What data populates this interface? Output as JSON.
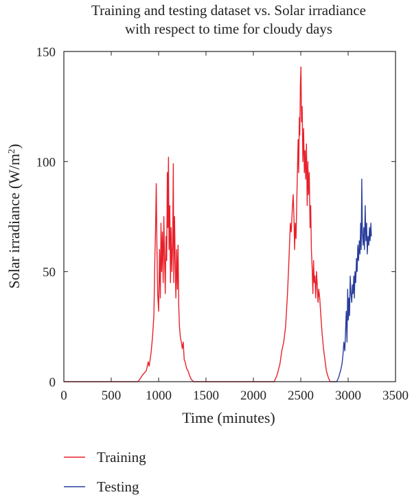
{
  "chart_data": {
    "type": "line",
    "title": "Training and testing dataset vs. Solar irradiance with respect to time for cloudy days",
    "title_lines": [
      "Training and testing dataset vs. Solar irradiance",
      "with respect to time for cloudy days"
    ],
    "xlabel": "Time (minutes)",
    "ylabel_main": "Solar irradiance (W/m",
    "ylabel_sup": "2",
    "ylabel_tail": ")",
    "xlim": [
      0,
      3500
    ],
    "ylim": [
      0,
      150
    ],
    "xticks": [
      0,
      500,
      1000,
      1500,
      2000,
      2500,
      3000,
      3500
    ],
    "yticks": [
      0,
      50,
      100,
      150
    ],
    "grid": false,
    "legend_position": "bottom-left",
    "series": [
      {
        "name": "Training",
        "color": "#e8202a",
        "points": [
          [
            0,
            0
          ],
          [
            780,
            0
          ],
          [
            800,
            1
          ],
          [
            830,
            3
          ],
          [
            850,
            4
          ],
          [
            870,
            5
          ],
          [
            890,
            9
          ],
          [
            900,
            7
          ],
          [
            920,
            13
          ],
          [
            935,
            20
          ],
          [
            950,
            30
          ],
          [
            960,
            55
          ],
          [
            968,
            70
          ],
          [
            975,
            90
          ],
          [
            982,
            62
          ],
          [
            990,
            40
          ],
          [
            1000,
            32
          ],
          [
            1010,
            60
          ],
          [
            1018,
            38
          ],
          [
            1025,
            72
          ],
          [
            1032,
            50
          ],
          [
            1040,
            68
          ],
          [
            1048,
            45
          ],
          [
            1055,
            75
          ],
          [
            1062,
            58
          ],
          [
            1070,
            40
          ],
          [
            1078,
            66
          ],
          [
            1085,
            55
          ],
          [
            1092,
            95
          ],
          [
            1098,
            70
          ],
          [
            1104,
            102
          ],
          [
            1110,
            60
          ],
          [
            1118,
            80
          ],
          [
            1125,
            45
          ],
          [
            1132,
            70
          ],
          [
            1140,
            50
          ],
          [
            1148,
            62
          ],
          [
            1155,
            99
          ],
          [
            1160,
            45
          ],
          [
            1168,
            75
          ],
          [
            1175,
            55
          ],
          [
            1182,
            38
          ],
          [
            1190,
            60
          ],
          [
            1198,
            42
          ],
          [
            1205,
            62
          ],
          [
            1212,
            35
          ],
          [
            1220,
            25
          ],
          [
            1230,
            20
          ],
          [
            1240,
            18
          ],
          [
            1250,
            15
          ],
          [
            1260,
            18
          ],
          [
            1270,
            10
          ],
          [
            1280,
            9
          ],
          [
            1295,
            6
          ],
          [
            1310,
            5
          ],
          [
            1325,
            3
          ],
          [
            1345,
            1
          ],
          [
            1370,
            0
          ],
          [
            2220,
            0
          ],
          [
            2250,
            3
          ],
          [
            2280,
            8
          ],
          [
            2300,
            14
          ],
          [
            2320,
            18
          ],
          [
            2340,
            25
          ],
          [
            2360,
            40
          ],
          [
            2375,
            55
          ],
          [
            2390,
            72
          ],
          [
            2400,
            68
          ],
          [
            2410,
            78
          ],
          [
            2420,
            85
          ],
          [
            2428,
            75
          ],
          [
            2435,
            60
          ],
          [
            2442,
            72
          ],
          [
            2450,
            65
          ],
          [
            2458,
            82
          ],
          [
            2465,
            96
          ],
          [
            2472,
            110
          ],
          [
            2478,
            95
          ],
          [
            2485,
            120
          ],
          [
            2490,
            112
          ],
          [
            2496,
            135
          ],
          [
            2502,
            143
          ],
          [
            2508,
            118
          ],
          [
            2515,
            125
          ],
          [
            2522,
            100
          ],
          [
            2530,
            115
          ],
          [
            2538,
            95
          ],
          [
            2545,
            105
          ],
          [
            2552,
            92
          ],
          [
            2560,
            108
          ],
          [
            2568,
            80
          ],
          [
            2575,
            100
          ],
          [
            2582,
            85
          ],
          [
            2590,
            95
          ],
          [
            2598,
            70
          ],
          [
            2605,
            80
          ],
          [
            2612,
            60
          ],
          [
            2620,
            52
          ],
          [
            2628,
            40
          ],
          [
            2635,
            55
          ],
          [
            2642,
            45
          ],
          [
            2650,
            48
          ],
          [
            2658,
            38
          ],
          [
            2666,
            50
          ],
          [
            2674,
            44
          ],
          [
            2682,
            36
          ],
          [
            2690,
            42
          ],
          [
            2700,
            38
          ],
          [
            2712,
            30
          ],
          [
            2725,
            22
          ],
          [
            2740,
            15
          ],
          [
            2755,
            10
          ],
          [
            2770,
            5
          ],
          [
            2790,
            2
          ],
          [
            2810,
            0
          ],
          [
            2850,
            0
          ]
        ]
      },
      {
        "name": "Testing",
        "color": "#2a3d9c",
        "points": [
          [
            2850,
            0
          ],
          [
            2880,
            0
          ],
          [
            2900,
            2
          ],
          [
            2920,
            5
          ],
          [
            2935,
            8
          ],
          [
            2945,
            12
          ],
          [
            2955,
            18
          ],
          [
            2965,
            14
          ],
          [
            2972,
            22
          ],
          [
            2980,
            32
          ],
          [
            2988,
            18
          ],
          [
            2995,
            42
          ],
          [
            3002,
            28
          ],
          [
            3008,
            38
          ],
          [
            3015,
            30
          ],
          [
            3022,
            48
          ],
          [
            3030,
            40
          ],
          [
            3038,
            36
          ],
          [
            3045,
            44
          ],
          [
            3052,
            40
          ],
          [
            3060,
            48
          ],
          [
            3066,
            38
          ],
          [
            3072,
            50
          ],
          [
            3080,
            45
          ],
          [
            3088,
            56
          ],
          [
            3095,
            50
          ],
          [
            3102,
            62
          ],
          [
            3110,
            55
          ],
          [
            3118,
            64
          ],
          [
            3125,
            58
          ],
          [
            3132,
            72
          ],
          [
            3138,
            60
          ],
          [
            3144,
            92
          ],
          [
            3150,
            68
          ],
          [
            3158,
            62
          ],
          [
            3165,
            70
          ],
          [
            3172,
            60
          ],
          [
            3180,
            80
          ],
          [
            3188,
            64
          ],
          [
            3195,
            72
          ],
          [
            3202,
            58
          ],
          [
            3210,
            66
          ],
          [
            3218,
            62
          ],
          [
            3225,
            70
          ],
          [
            3232,
            64
          ],
          [
            3240,
            72
          ],
          [
            3245,
            66
          ]
        ]
      }
    ]
  }
}
